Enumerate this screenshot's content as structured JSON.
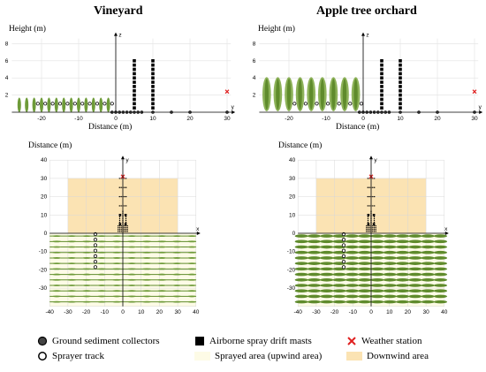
{
  "titles": {
    "left": "Vineyard",
    "right": "Apple tree orchard"
  },
  "labels": {
    "height": "Height (m)",
    "distance": "Distance (m)",
    "z": "z",
    "y": "y",
    "x": "x"
  },
  "side_view": {
    "x_ticks": [
      "-20",
      "-10",
      "0",
      "10",
      "20",
      "30"
    ],
    "y_ticks": [
      "2",
      "4",
      "6",
      "8"
    ]
  },
  "plan_view": {
    "y_ticks": [
      "40",
      "30",
      "20",
      "10",
      "0",
      "-10",
      "-20",
      "-30"
    ],
    "x_ticks": [
      "-40",
      "-30",
      "-20",
      "-10",
      "0",
      "10",
      "20",
      "30",
      "40"
    ]
  },
  "legend": {
    "ground": "Ground sediment collectors",
    "masts": "Airborne spray drift masts",
    "weather": "Weather station",
    "track": "Sprayer track",
    "sprayed": "Sprayed area (upwind area)",
    "downwind": "Downwind area"
  },
  "colors": {
    "downwind": "#fbe3b3",
    "sprayed": "#fdfbe6",
    "vegetation": "#5f8b2c",
    "weather": "#e02020"
  }
}
